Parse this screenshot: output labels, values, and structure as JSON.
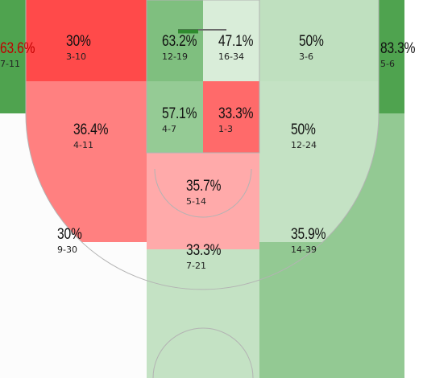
{
  "court": {
    "zones": [
      {
        "id": "left-corner-three",
        "pct": "63.6%",
        "made_attempts": "7-11",
        "made": 7,
        "attempts": 11,
        "fill": "#4fa34f"
      },
      {
        "id": "right-corner-three",
        "pct": "83.3%",
        "made_attempts": "5-6",
        "made": 5,
        "attempts": 6,
        "fill": "#4fa34f"
      },
      {
        "id": "left-baseline-midrange",
        "pct": "30%",
        "made_attempts": "3-10",
        "made": 3,
        "attempts": 10,
        "fill": "#ff4a4a"
      },
      {
        "id": "left-paint",
        "pct": "63.2%",
        "made_attempts": "12-19",
        "made": 12,
        "attempts": 19,
        "fill": "#7fbf7f"
      },
      {
        "id": "right-paint",
        "pct": "47.1%",
        "made_attempts": "16-34",
        "made": 16,
        "attempts": 34,
        "fill": "#d9edd9"
      },
      {
        "id": "right-baseline-midrange",
        "pct": "50%",
        "made_attempts": "3-6",
        "made": 3,
        "attempts": 6,
        "fill": "#bfe0bf"
      },
      {
        "id": "left-wing-midrange",
        "pct": "36.4%",
        "made_attempts": "4-11",
        "made": 4,
        "attempts": 11,
        "fill": "#ff8080"
      },
      {
        "id": "left-lane-midrange",
        "pct": "57.1%",
        "made_attempts": "4-7",
        "made": 4,
        "attempts": 7,
        "fill": "#95cb95"
      },
      {
        "id": "right-lane-midrange",
        "pct": "33.3%",
        "made_attempts": "1-3",
        "made": 1,
        "attempts": 3,
        "fill": "#ff6a6a"
      },
      {
        "id": "right-wing-midrange",
        "pct": "50%",
        "made_attempts": "12-24",
        "made": 12,
        "attempts": 24,
        "fill": "#c4e2c4"
      },
      {
        "id": "top-key-midrange",
        "pct": "35.7%",
        "made_attempts": "5-14",
        "made": 5,
        "attempts": 14,
        "fill": "#ffaaaa"
      },
      {
        "id": "left-wing-three",
        "pct": "30%",
        "made_attempts": "9-30",
        "made": 9,
        "attempts": 30,
        "fill": "#fcfcfc"
      },
      {
        "id": "top-of-key-three",
        "pct": "33.3%",
        "made_attempts": "7-21",
        "made": 7,
        "attempts": 21,
        "fill": "#c4e2c4"
      },
      {
        "id": "right-wing-three",
        "pct": "35.9%",
        "made_attempts": "14-39",
        "made": 14,
        "attempts": 39,
        "fill": "#93c993"
      }
    ]
  }
}
